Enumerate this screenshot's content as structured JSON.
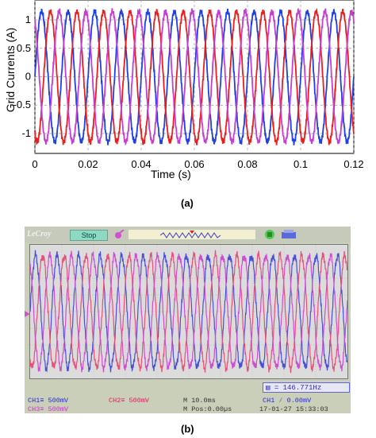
{
  "chart_data": [
    {
      "type": "line",
      "panel": "(a)",
      "xlabel": "Time (s)",
      "ylabel": "Grid Currents (A)",
      "xlim": [
        0,
        0.12
      ],
      "ylim": [
        -1.35,
        1.35
      ],
      "x_ticks": [
        "0",
        "0.02",
        "0.04",
        "0.06",
        "0.08",
        "0.1",
        "0.12"
      ],
      "y_ticks": [
        "1",
        "0.5",
        "0",
        "-0.5",
        "-1"
      ],
      "grid": "dashed",
      "frequency_hz": 100,
      "amplitude": 1.15,
      "series": [
        {
          "color": "#1f3fe8",
          "phase_deg": 0
        },
        {
          "color": "#ee1c1c",
          "phase_deg": 120
        },
        {
          "color": "#c63cd4",
          "phase_deg": 240
        }
      ]
    },
    {
      "type": "line",
      "panel": "(b)",
      "xlim": [
        0,
        100
      ],
      "grid": "on",
      "series": [
        {
          "color": "#4a4fd9",
          "phase_deg": 0
        },
        {
          "color": "#e8507a",
          "phase_deg": 120
        },
        {
          "color": "#cc4fcf",
          "phase_deg": 240
        }
      ]
    }
  ],
  "captions": {
    "a": "(a)",
    "b": "(b)"
  },
  "scope": {
    "brand": "LeCroy",
    "status": "Stop",
    "ch1": "CH1",
    "ch1_scale": "500mV",
    "ch2": "CH2",
    "ch2_scale": "500mV",
    "ch3": "CH3",
    "ch3_scale": "500mV",
    "timebase": "M 10.0ms",
    "position": "M Pos:0.00µs",
    "trigger": "CH1 ∕ 0.00mV",
    "date_time": "17-01-27  15:33:03",
    "frequency": "146.771Hz"
  }
}
